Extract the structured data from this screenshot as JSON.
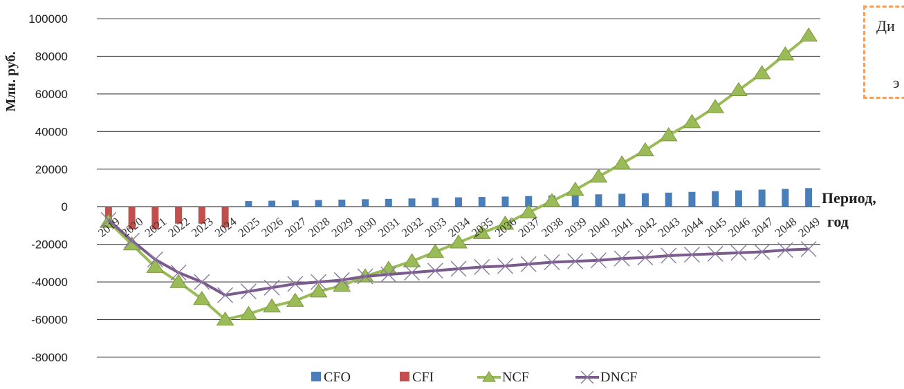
{
  "chart_data": {
    "type": "bar+line",
    "ylabel": "Млн. руб.",
    "xlabel_line1": "Период,",
    "xlabel_line2": "год",
    "ylim": [
      -80000,
      100000
    ],
    "yticks": [
      100000,
      80000,
      60000,
      40000,
      20000,
      0,
      -20000,
      -40000,
      -60000,
      -80000
    ],
    "grid": true,
    "legend_position": "bottom",
    "categories": [
      "2019",
      "2020",
      "2021",
      "2022",
      "2023",
      "2024",
      "2025",
      "2026",
      "2027",
      "2028",
      "2029",
      "2030",
      "2031",
      "2032",
      "2033",
      "2034",
      "2035",
      "2036",
      "2037",
      "2038",
      "2039",
      "2040",
      "2041",
      "2042",
      "2043",
      "2044",
      "2045",
      "2046",
      "2047",
      "2048",
      "2049"
    ],
    "series": [
      {
        "name": "CFO",
        "kind": "bar",
        "color": "#4a7ebb",
        "values": [
          0,
          0,
          0,
          0,
          0,
          0,
          3000,
          3200,
          3400,
          3600,
          3800,
          4000,
          4200,
          4400,
          4700,
          5000,
          5200,
          5400,
          5700,
          6000,
          6300,
          6600,
          6900,
          7200,
          7500,
          7900,
          8300,
          8700,
          9100,
          9500,
          9900
        ]
      },
      {
        "name": "CFI",
        "kind": "bar",
        "color": "#c0504d",
        "values": [
          -7000,
          -12000,
          -12000,
          -9000,
          -9000,
          -11000,
          0,
          0,
          0,
          0,
          0,
          0,
          0,
          0,
          0,
          0,
          0,
          0,
          0,
          0,
          0,
          0,
          0,
          0,
          0,
          0,
          0,
          0,
          0,
          0,
          0
        ]
      },
      {
        "name": "NCF",
        "kind": "line",
        "marker": "triangle",
        "color": "#9bbb59",
        "values": [
          -8000,
          -20000,
          -32000,
          -40000,
          -49000,
          -60000,
          -57000,
          -53000,
          -50000,
          -45000,
          -42000,
          -37000,
          -33000,
          -29000,
          -24000,
          -19000,
          -14000,
          -9000,
          -3000,
          3000,
          9000,
          16000,
          23000,
          30000,
          38000,
          45000,
          53000,
          62000,
          71000,
          81000,
          91000
        ]
      },
      {
        "name": "DNCF",
        "kind": "line",
        "marker": "x",
        "color": "#7b5a8e",
        "values": [
          -7000,
          -18000,
          -28000,
          -35000,
          -40000,
          -47000,
          -45000,
          -43000,
          -41000,
          -40000,
          -39000,
          -37000,
          -36000,
          -35000,
          -34000,
          -33000,
          -32000,
          -31500,
          -30500,
          -29500,
          -29000,
          -28500,
          -27500,
          -27000,
          -26000,
          -25500,
          -25000,
          -24500,
          -24000,
          -23000,
          -22500
        ]
      }
    ]
  },
  "note": {
    "line1": "Ди",
    "line2": "э"
  }
}
